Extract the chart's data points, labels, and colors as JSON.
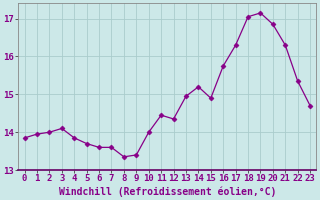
{
  "x": [
    0,
    1,
    2,
    3,
    4,
    5,
    6,
    7,
    8,
    9,
    10,
    11,
    12,
    13,
    14,
    15,
    16,
    17,
    18,
    19,
    20,
    21,
    22,
    23
  ],
  "y": [
    13.85,
    13.95,
    14.0,
    14.1,
    13.85,
    13.7,
    13.6,
    13.6,
    13.35,
    13.4,
    14.0,
    14.45,
    14.35,
    14.95,
    15.2,
    14.9,
    15.75,
    16.3,
    17.05,
    17.15,
    16.85,
    16.3,
    15.35,
    14.7
  ],
  "line_color": "#880088",
  "marker": "D",
  "marker_size": 2.5,
  "bg_color": "#cce8e8",
  "grid_color": "#aacccc",
  "xlabel": "Windchill (Refroidissement éolien,°C)",
  "ylabel_ticks": [
    13,
    14,
    15,
    16,
    17
  ],
  "xtick_labels": [
    "0",
    "1",
    "2",
    "3",
    "4",
    "5",
    "6",
    "7",
    "8",
    "9",
    "10",
    "11",
    "12",
    "13",
    "14",
    "15",
    "16",
    "17",
    "18",
    "19",
    "20",
    "21",
    "22",
    "23"
  ],
  "xlim": [
    -0.5,
    23.5
  ],
  "ylim": [
    13.0,
    17.4
  ],
  "xlabel_fontsize": 7,
  "tick_fontsize": 6.5,
  "fig_width": 3.2,
  "fig_height": 2.0,
  "dpi": 100
}
